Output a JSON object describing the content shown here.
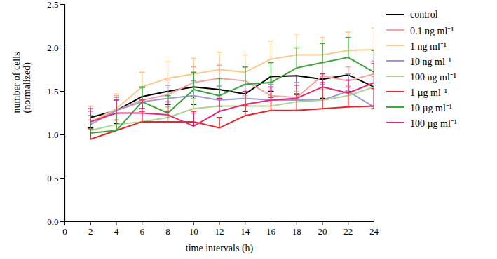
{
  "chart_data": {
    "type": "line",
    "x_label": "time intervals (h)",
    "y_label": "number of cells\n(normalized)",
    "x": [
      2,
      4,
      6,
      8,
      10,
      12,
      14,
      16,
      18,
      20,
      22,
      24
    ],
    "xlim": [
      0,
      24
    ],
    "xticks": [
      0,
      2,
      4,
      6,
      8,
      10,
      12,
      14,
      16,
      18,
      20,
      22,
      24
    ],
    "ylim": [
      0,
      2.5
    ],
    "yticks": [
      {
        "value": 0,
        "label": "0.0"
      },
      {
        "value": 0.5,
        "label": "0.5"
      },
      {
        "value": 1,
        "label": "1.0"
      },
      {
        "value": 1.5,
        "label": "1.5"
      },
      {
        "value": 2,
        "label": "2.0"
      },
      {
        "value": 2.5,
        "label": "2.5"
      }
    ],
    "legend": "right",
    "series": [
      {
        "name": "control",
        "color": "#000000",
        "values": [
          1.2,
          1.28,
          1.44,
          1.5,
          1.55,
          1.52,
          1.47,
          1.67,
          1.68,
          1.64,
          1.69,
          1.55
        ],
        "error_minus": [
          0.12,
          0.15,
          0.14,
          0.15,
          0.2,
          0.19,
          0.2,
          0.17,
          0.21,
          0.22,
          0.19,
          0.25
        ]
      },
      {
        "name": "0.1 ng ml⁻¹",
        "color": "#f4a3a3",
        "values": [
          1.15,
          1.28,
          1.4,
          1.46,
          1.6,
          1.65,
          1.62,
          1.45,
          1.43,
          1.68,
          1.62,
          1.7
        ],
        "error_plus": [
          0.18,
          0.17,
          0.15,
          0.17,
          0.18,
          0.15,
          0.16,
          0.15,
          0.17,
          0.15,
          0.16,
          0.15
        ]
      },
      {
        "name": "1 ng ml⁻¹",
        "color": "#fcc88c",
        "values": [
          1.15,
          1.3,
          1.55,
          1.65,
          1.7,
          1.75,
          1.72,
          1.87,
          1.92,
          1.92,
          1.97,
          1.98
        ],
        "error_plus": [
          0.15,
          0.17,
          0.17,
          0.19,
          0.18,
          0.2,
          0.2,
          0.21,
          0.24,
          0.2,
          0.21,
          0.25
        ]
      },
      {
        "name": "10 ng ml⁻¹",
        "color": "#9b9bd6",
        "values": [
          1.12,
          1.28,
          1.38,
          1.42,
          1.45,
          1.4,
          1.42,
          1.4,
          1.4,
          1.4,
          1.5,
          1.32
        ],
        "error_plus": [
          0.15,
          0.15,
          0.16,
          0.15,
          0.17,
          0.16,
          0.16,
          0.18,
          0.2,
          0.18,
          0.2,
          0.25
        ]
      },
      {
        "name": "100 ng ml⁻¹",
        "color": "#a9d68c",
        "values": [
          1.05,
          1.12,
          1.15,
          1.2,
          1.3,
          1.33,
          1.33,
          1.33,
          1.38,
          1.4,
          1.45,
          1.55
        ],
        "error_plus": [
          0.12,
          0.12,
          0.12,
          0.12,
          0.12,
          0.12,
          0.12,
          0.12,
          0.12,
          0.12,
          0.12,
          0.12
        ]
      },
      {
        "name": "1 µg ml⁻¹",
        "color": "#e8262a",
        "values": [
          0.95,
          1.05,
          1.15,
          1.15,
          1.15,
          1.08,
          1.22,
          1.28,
          1.28,
          1.3,
          1.32,
          1.33
        ],
        "error_plus": [
          0.12,
          0.12,
          0.12,
          0.12,
          0.12,
          0.12,
          0.12,
          0.15,
          0.18,
          0.3,
          0.23,
          0.2
        ]
      },
      {
        "name": "10 µg ml⁻¹",
        "color": "#3aa63a",
        "values": [
          1.02,
          1.05,
          1.38,
          1.25,
          1.52,
          1.45,
          1.58,
          1.6,
          1.77,
          1.83,
          1.89,
          1.72
        ],
        "error_plus": [
          0.2,
          0.35,
          0.17,
          0.2,
          0.2,
          0.2,
          0.2,
          0.23,
          0.23,
          0.22,
          0.23,
          0.25
        ]
      },
      {
        "name": "100 µg ml⁻¹",
        "color": "#e0297c",
        "values": [
          1.15,
          1.25,
          1.25,
          1.23,
          1.1,
          1.27,
          1.35,
          1.4,
          1.42,
          1.55,
          1.48,
          1.6
        ],
        "error_plus": [
          0.15,
          0.15,
          0.15,
          0.15,
          0.15,
          0.15,
          0.15,
          0.15,
          0.15,
          0.15,
          0.15,
          0.22
        ]
      }
    ]
  }
}
